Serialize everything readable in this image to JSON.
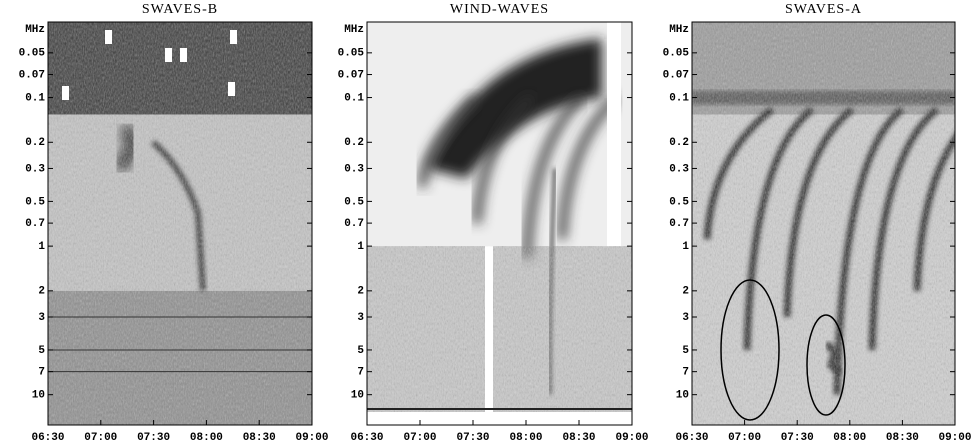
{
  "chart_data": [
    {
      "type": "spectrogram",
      "title": "SWAVES-B",
      "ylabel": "MHz",
      "ylog": true,
      "yinvert": true,
      "ylim": [
        0.031,
        16
      ],
      "yticks": [
        0.05,
        0.07,
        0.1,
        0.2,
        0.3,
        0.5,
        0.7,
        1,
        2,
        3,
        5,
        7,
        10
      ],
      "xticks": [
        "06:30",
        "07:00",
        "07:30",
        "08:00",
        "08:30",
        "09:00"
      ]
    },
    {
      "type": "spectrogram",
      "title": "WIND-WAVES",
      "ylabel": "MHz",
      "ylog": true,
      "yinvert": true,
      "ylim": [
        0.031,
        16
      ],
      "yticks": [
        0.05,
        0.07,
        0.1,
        0.2,
        0.3,
        0.5,
        0.7,
        1,
        2,
        3,
        5,
        7,
        10
      ],
      "xticks": [
        "06:30",
        "07:00",
        "07:30",
        "08:00",
        "08:30",
        "09:00"
      ]
    },
    {
      "type": "spectrogram",
      "title": "SWAVES-A",
      "ylabel": "MHz",
      "ylog": true,
      "yinvert": true,
      "ylim": [
        0.031,
        16
      ],
      "yticks": [
        0.05,
        0.07,
        0.1,
        0.2,
        0.3,
        0.5,
        0.7,
        1,
        2,
        3,
        5,
        7,
        10
      ],
      "xticks": [
        "06:30",
        "07:00",
        "07:30",
        "08:00",
        "08:30",
        "09:00"
      ]
    }
  ]
}
